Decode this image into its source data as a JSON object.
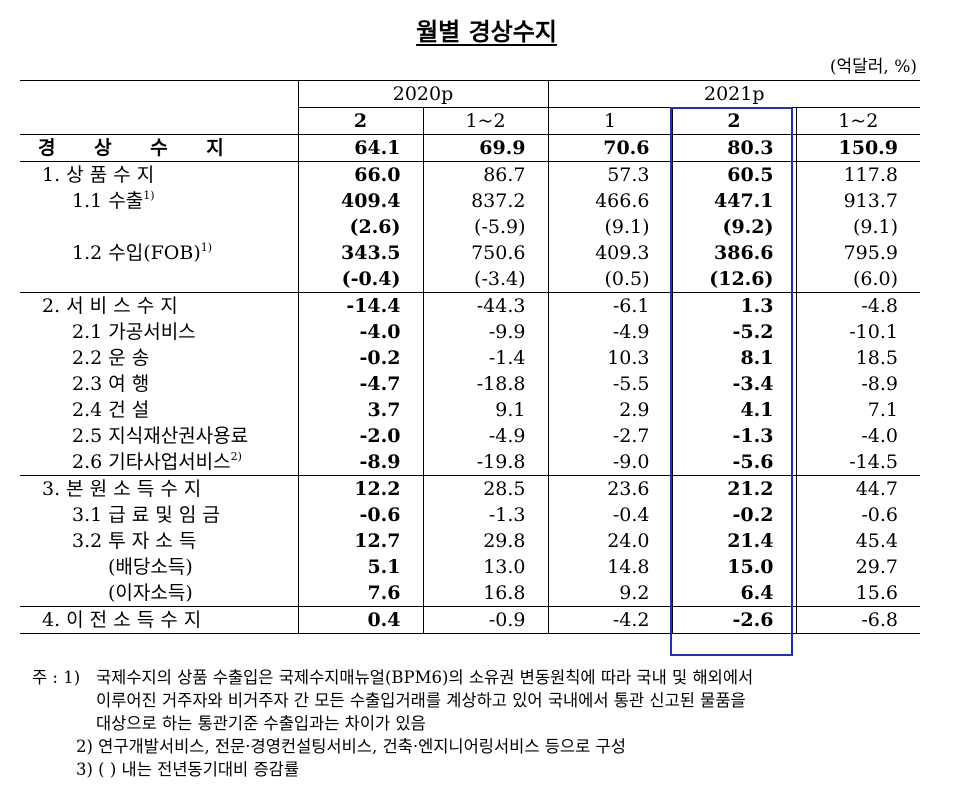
{
  "title": "월별 경상수지",
  "unit": "(억달러, %)",
  "years": {
    "y2020": "2020p",
    "y2021": "2021p"
  },
  "periods": [
    "2",
    "1~2",
    "1",
    "2",
    "1~2"
  ],
  "rows": [
    {
      "label": "경 상 수 지",
      "values": [
        "64.1",
        "69.9",
        "70.6",
        "80.3",
        "150.9"
      ]
    },
    {
      "label": "1. 상 품 수 지",
      "values": [
        "66.0",
        "86.7",
        "57.3",
        "60.5",
        "117.8"
      ]
    },
    {
      "label": "1.1  수출",
      "sup": "1)",
      "values": [
        "409.4",
        "837.2",
        "466.6",
        "447.1",
        "913.7"
      ]
    },
    {
      "label": "",
      "values": [
        "(2.6)",
        "(-5.9)",
        "(9.1)",
        "(9.2)",
        "(9.1)"
      ]
    },
    {
      "label": "1.2  수입(FOB)",
      "sup": "1)",
      "values": [
        "343.5",
        "750.6",
        "409.3",
        "386.6",
        "795.9"
      ]
    },
    {
      "label": "",
      "values": [
        "(-0.4)",
        "(-3.4)",
        "(0.5)",
        "(12.6)",
        "(6.0)"
      ]
    },
    {
      "label": "2. 서 비 스 수 지",
      "values": [
        "-14.4",
        "-44.3",
        "-6.1",
        "1.3",
        "-4.8"
      ]
    },
    {
      "label": "2.1  가공서비스",
      "values": [
        "-4.0",
        "-9.9",
        "-4.9",
        "-5.2",
        "-10.1"
      ]
    },
    {
      "label": "2.2  운      송",
      "values": [
        "-0.2",
        "-1.4",
        "10.3",
        "8.1",
        "18.5"
      ]
    },
    {
      "label": "2.3  여      행",
      "values": [
        "-4.7",
        "-18.8",
        "-5.5",
        "-3.4",
        "-8.9"
      ]
    },
    {
      "label": "2.4  건      설",
      "values": [
        "3.7",
        "9.1",
        "2.9",
        "4.1",
        "7.1"
      ]
    },
    {
      "label": "2.5  지식재산권사용료",
      "values": [
        "-2.0",
        "-4.9",
        "-2.7",
        "-1.3",
        "-4.0"
      ]
    },
    {
      "label": "2.6  기타사업서비스",
      "sup": "2)",
      "values": [
        "-8.9",
        "-19.8",
        "-9.0",
        "-5.6",
        "-14.5"
      ]
    },
    {
      "label": "3. 본 원 소 득 수 지",
      "values": [
        "12.2",
        "28.5",
        "23.6",
        "21.2",
        "44.7"
      ]
    },
    {
      "label": "3.1  급 료 및 임 금",
      "values": [
        "-0.6",
        "-1.3",
        "-0.4",
        "-0.2",
        "-0.6"
      ]
    },
    {
      "label": "3.2  투   자   소   득",
      "values": [
        "12.7",
        "29.8",
        "24.0",
        "21.4",
        "45.4"
      ]
    },
    {
      "label": "(배당소득)",
      "values": [
        "5.1",
        "13.0",
        "14.8",
        "15.0",
        "29.7"
      ]
    },
    {
      "label": "(이자소득)",
      "values": [
        "7.6",
        "16.8",
        "9.2",
        "6.4",
        "15.6"
      ]
    },
    {
      "label": "4. 이 전 소 득 수 지",
      "values": [
        "0.4",
        "-0.9",
        "-4.2",
        "-2.6",
        "-6.8"
      ]
    }
  ],
  "notes": {
    "prefix": "주 :",
    "n1_key": "1)",
    "n1_line1": "국제수지의 상품 수출입은 국제수지매뉴얼(BPM6)의 소유권 변동원칙에 따라 국내 및 해외에서",
    "n1_line2": "이루어진 거주자와 비거주자 간 모든 수출입거래를 계상하고 있어 국내에서 통관 신고된 물품을",
    "n1_line3": "대상으로 하는 통관기준 수출입과는 차이가 있음",
    "n2": "2) 연구개발서비스, 전문·경영컨설팅서비스, 건축·엔지니어링서비스 등으로 구성",
    "n3": "3) (   ) 내는 전년동기대비 증감률"
  }
}
